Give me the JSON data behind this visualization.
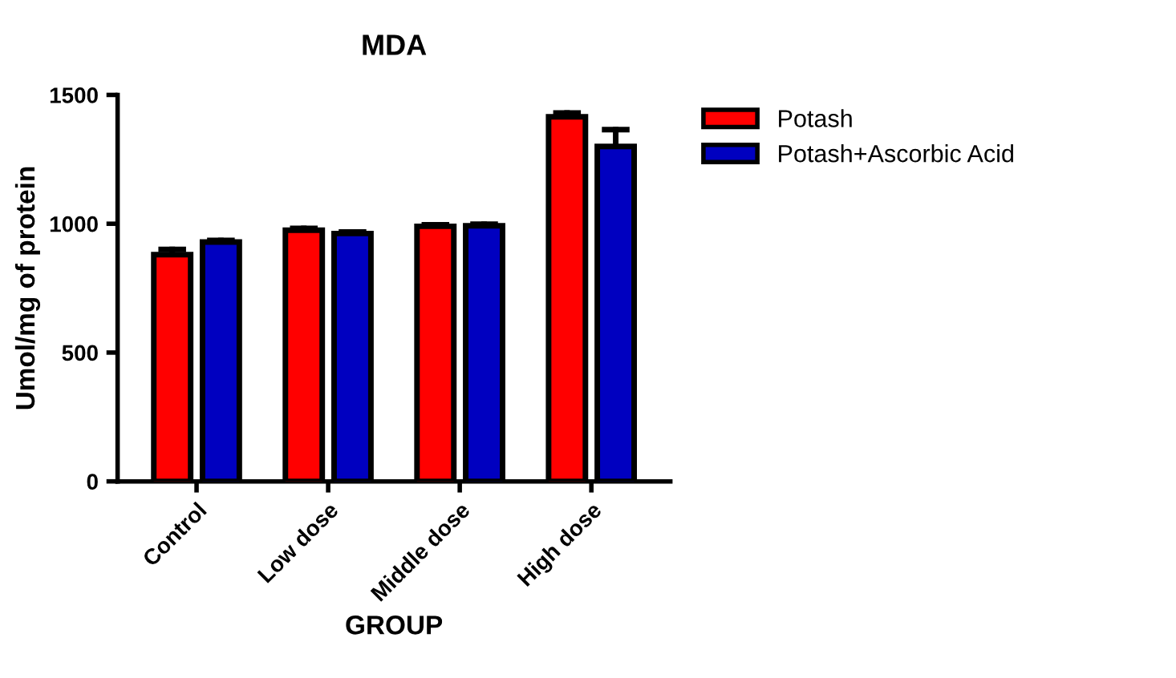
{
  "chart_data": {
    "type": "bar",
    "title": "MDA",
    "xlabel": "GROUP",
    "ylabel": "Umol/mg of protein",
    "categories": [
      "Control",
      "Low dose",
      "Middle dose",
      "High dose"
    ],
    "series": [
      {
        "name": "Potash",
        "color": "#ff0000",
        "values": [
          880,
          975,
          990,
          1415
        ],
        "errors": [
          20,
          7,
          6,
          15
        ]
      },
      {
        "name": "Potash+Ascorbic Acid",
        "color": "#0000c0",
        "values": [
          929,
          962,
          992,
          1300
        ],
        "errors": [
          6,
          6,
          6,
          65
        ]
      }
    ],
    "ylim": [
      0,
      1500
    ],
    "yticks": [
      0,
      500,
      1000,
      1500
    ],
    "grid": false,
    "legend": "right"
  }
}
